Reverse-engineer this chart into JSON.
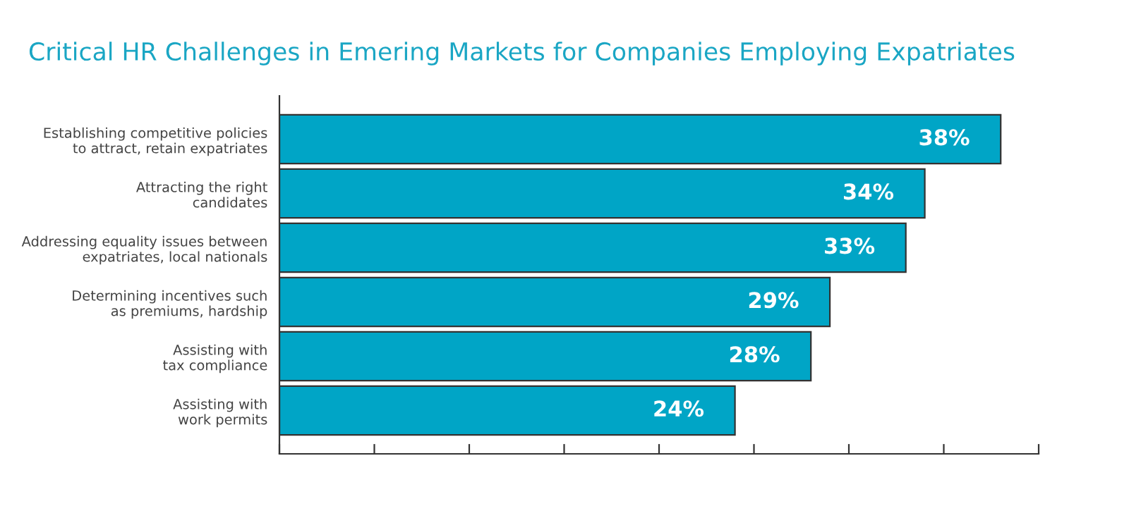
{
  "chart_data": {
    "type": "bar",
    "orientation": "horizontal",
    "title": "Critical HR Challenges in Emering Markets for Companies Employing Expatriates",
    "categories": [
      "Establishing competitive policies\nto attract, retain expatriates",
      "Attracting the right\ncandidates",
      "Addressing equality issues between\nexpatriates, local nationals",
      "Determining incentives such\nas premiums, hardship",
      "Assisting with\ntax compliance",
      "Assisting with\nwork permits"
    ],
    "values": [
      38,
      34,
      33,
      29,
      28,
      24
    ],
    "value_labels": [
      "38%",
      "34%",
      "33%",
      "29%",
      "28%",
      "24%"
    ],
    "color": "#00a5c6",
    "xlim": [
      0,
      40
    ],
    "xticks": [
      {
        "value": 0,
        "label": null
      },
      {
        "value": 5,
        "label": null
      },
      {
        "value": 10,
        "label": null
      },
      {
        "value": 15,
        "label": null
      },
      {
        "value": 20,
        "label": null
      },
      {
        "value": 25,
        "label": null
      },
      {
        "value": 30,
        "label": null
      },
      {
        "value": 35,
        "label": null
      },
      {
        "value": 40,
        "label": null
      }
    ],
    "tick_labels": "y",
    "grid": false,
    "legend": false
  }
}
